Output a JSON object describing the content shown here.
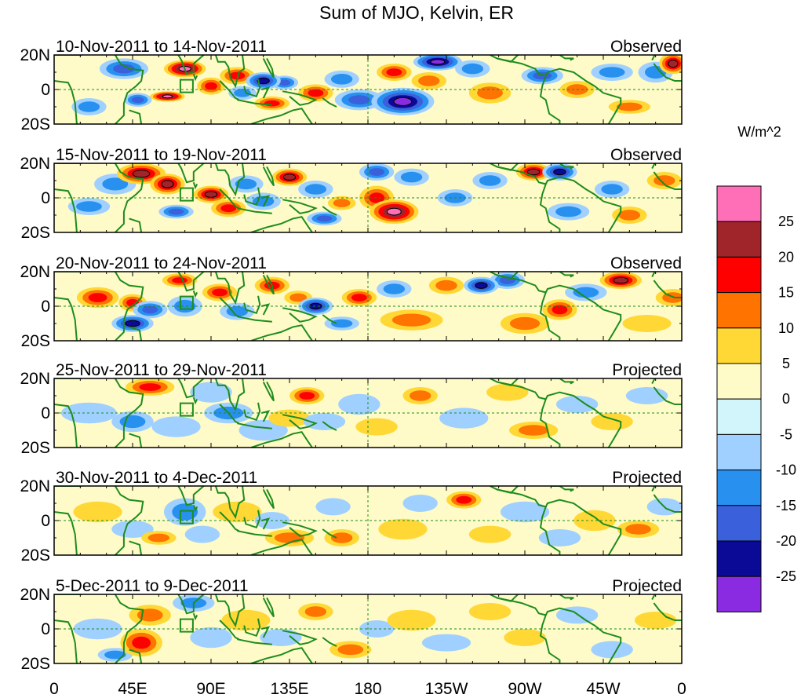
{
  "chart_data": {
    "type": "heatmap",
    "title": "Sum of MJO, Kelvin, ER",
    "colorbar": {
      "label": "W/m^2",
      "levels": [
        -25,
        -20,
        -15,
        -10,
        -5,
        0,
        5,
        10,
        15,
        20,
        25
      ],
      "level_labels": [
        "25",
        "20",
        "15",
        "10",
        "5",
        "0",
        "-5",
        "-10",
        "-15",
        "-20",
        "-25"
      ],
      "colors_top_to_bottom": [
        "#FF6FB8",
        "#A0252A",
        "#FF0000",
        "#FF7300",
        "#FFD836",
        "#FFFBC8",
        "#D2F5FB",
        "#A0D0FF",
        "#2891F0",
        "#3A60DC",
        "#0A0A96",
        "#8A2BE2"
      ]
    },
    "x_ticks": [
      "0",
      "45E",
      "90E",
      "135E",
      "180",
      "135W",
      "90W",
      "45W",
      "0"
    ],
    "x_tick_lon": [
      0,
      45,
      90,
      135,
      180,
      225,
      270,
      315,
      360
    ],
    "y_ticks": [
      "20N",
      "0",
      "20S"
    ],
    "y_tick_lat": [
      20,
      0,
      -20
    ],
    "lon_range": [
      0,
      360
    ],
    "lat_range": [
      -20,
      20
    ],
    "panels": [
      {
        "period": "10-Nov-2011 to 14-Nov-2011",
        "status": "Observed",
        "blobs": [
          [
            40,
            12,
            14,
            6,
            -3
          ],
          [
            75,
            12,
            12,
            5,
            5
          ],
          [
            65,
            -4,
            10,
            3,
            5
          ],
          [
            48,
            -6,
            8,
            4,
            -3
          ],
          [
            90,
            2,
            8,
            5,
            3
          ],
          [
            105,
            8,
            10,
            5,
            3
          ],
          [
            108,
            -2,
            8,
            4,
            -2
          ],
          [
            120,
            5,
            10,
            5,
            -4
          ],
          [
            132,
            4,
            8,
            4,
            -3
          ],
          [
            125,
            -8,
            10,
            4,
            3
          ],
          [
            150,
            -2,
            10,
            5,
            3
          ],
          [
            165,
            6,
            10,
            5,
            -2
          ],
          [
            175,
            -6,
            14,
            6,
            -3
          ],
          [
            200,
            -7,
            18,
            8,
            -5
          ],
          [
            195,
            10,
            10,
            5,
            3
          ],
          [
            215,
            5,
            10,
            5,
            2
          ],
          [
            220,
            16,
            14,
            5,
            -5
          ],
          [
            250,
            -2,
            12,
            6,
            2
          ],
          [
            240,
            12,
            10,
            5,
            -2
          ],
          [
            280,
            8,
            12,
            5,
            -3
          ],
          [
            300,
            0,
            10,
            5,
            2
          ],
          [
            320,
            10,
            12,
            5,
            -2
          ],
          [
            345,
            10,
            10,
            6,
            -2
          ],
          [
            355,
            15,
            8,
            6,
            4
          ],
          [
            20,
            -10,
            10,
            5,
            -2
          ],
          [
            330,
            -10,
            12,
            4,
            2
          ]
        ]
      },
      {
        "period": "15-Nov-2011 to 19-Nov-2011",
        "status": "Observed",
        "blobs": [
          [
            35,
            8,
            12,
            6,
            -2
          ],
          [
            50,
            14,
            14,
            6,
            4
          ],
          [
            65,
            8,
            10,
            6,
            4
          ],
          [
            70,
            -8,
            10,
            4,
            -3
          ],
          [
            90,
            2,
            10,
            5,
            4
          ],
          [
            100,
            -6,
            10,
            5,
            3
          ],
          [
            110,
            8,
            10,
            5,
            -2
          ],
          [
            120,
            -2,
            10,
            5,
            -2
          ],
          [
            135,
            12,
            10,
            5,
            4
          ],
          [
            150,
            5,
            10,
            5,
            -2
          ],
          [
            155,
            -12,
            10,
            4,
            -3
          ],
          [
            165,
            -3,
            8,
            4,
            2
          ],
          [
            185,
            0,
            10,
            7,
            3
          ],
          [
            195,
            -8,
            14,
            7,
            5
          ],
          [
            185,
            15,
            10,
            5,
            -3
          ],
          [
            205,
            12,
            10,
            5,
            -2
          ],
          [
            230,
            0,
            10,
            5,
            -2
          ],
          [
            250,
            10,
            10,
            5,
            -2
          ],
          [
            275,
            15,
            10,
            5,
            4
          ],
          [
            290,
            15,
            10,
            5,
            -4
          ],
          [
            295,
            -8,
            12,
            5,
            -2
          ],
          [
            320,
            5,
            10,
            5,
            -2
          ],
          [
            330,
            -10,
            10,
            5,
            2
          ],
          [
            20,
            -5,
            12,
            5,
            -2
          ],
          [
            350,
            10,
            10,
            5,
            2
          ]
        ]
      },
      {
        "period": "20-Nov-2011 to 24-Nov-2011",
        "status": "Observed",
        "blobs": [
          [
            25,
            5,
            12,
            6,
            3
          ],
          [
            45,
            2,
            8,
            5,
            3
          ],
          [
            55,
            -2,
            10,
            5,
            -3
          ],
          [
            45,
            -10,
            12,
            5,
            -4
          ],
          [
            75,
            0,
            10,
            6,
            -2
          ],
          [
            72,
            15,
            10,
            4,
            3
          ],
          [
            95,
            8,
            10,
            5,
            3
          ],
          [
            105,
            -3,
            10,
            5,
            -2
          ],
          [
            125,
            12,
            10,
            5,
            3
          ],
          [
            140,
            5,
            8,
            4,
            2
          ],
          [
            150,
            0,
            10,
            5,
            -4
          ],
          [
            165,
            -10,
            10,
            4,
            -2
          ],
          [
            175,
            5,
            10,
            5,
            3
          ],
          [
            195,
            10,
            10,
            5,
            -2
          ],
          [
            205,
            -8,
            18,
            6,
            2
          ],
          [
            225,
            12,
            10,
            5,
            2
          ],
          [
            245,
            12,
            10,
            5,
            -4
          ],
          [
            260,
            15,
            10,
            5,
            -3
          ],
          [
            270,
            -10,
            14,
            6,
            2
          ],
          [
            290,
            -2,
            10,
            6,
            3
          ],
          [
            305,
            8,
            12,
            5,
            -2
          ],
          [
            325,
            15,
            12,
            5,
            4
          ],
          [
            340,
            -10,
            14,
            5,
            1
          ],
          [
            355,
            5,
            10,
            5,
            2
          ]
        ]
      },
      {
        "period": "25-Nov-2011 to 29-Nov-2011",
        "status": "Projected",
        "blobs": [
          [
            20,
            0,
            16,
            6,
            -1
          ],
          [
            45,
            -5,
            12,
            6,
            -2
          ],
          [
            55,
            15,
            14,
            5,
            3
          ],
          [
            70,
            -8,
            14,
            6,
            -1
          ],
          [
            90,
            12,
            12,
            6,
            -1
          ],
          [
            100,
            0,
            14,
            6,
            -2
          ],
          [
            120,
            -10,
            14,
            6,
            -1
          ],
          [
            145,
            10,
            10,
            5,
            3
          ],
          [
            135,
            -3,
            12,
            5,
            1
          ],
          [
            155,
            -5,
            12,
            5,
            -1
          ],
          [
            175,
            5,
            12,
            6,
            -1
          ],
          [
            185,
            -8,
            12,
            5,
            1
          ],
          [
            210,
            10,
            10,
            5,
            2
          ],
          [
            235,
            -3,
            14,
            6,
            -1
          ],
          [
            260,
            12,
            12,
            5,
            1
          ],
          [
            275,
            -10,
            14,
            5,
            2
          ],
          [
            300,
            5,
            12,
            5,
            -1
          ],
          [
            320,
            -5,
            12,
            5,
            1
          ],
          [
            340,
            10,
            12,
            5,
            -1
          ]
        ]
      },
      {
        "period": "30-Nov-2011 to 4-Dec-2011",
        "status": "Projected",
        "blobs": [
          [
            25,
            5,
            14,
            6,
            1
          ],
          [
            45,
            -5,
            12,
            5,
            -1
          ],
          [
            60,
            -10,
            10,
            4,
            2
          ],
          [
            75,
            5,
            12,
            8,
            -2
          ],
          [
            85,
            -8,
            10,
            5,
            -1
          ],
          [
            105,
            5,
            14,
            6,
            1
          ],
          [
            125,
            0,
            10,
            5,
            -1
          ],
          [
            135,
            -10,
            14,
            5,
            2
          ],
          [
            160,
            8,
            10,
            5,
            -1
          ],
          [
            165,
            -10,
            10,
            5,
            2
          ],
          [
            200,
            -5,
            14,
            6,
            1
          ],
          [
            210,
            10,
            10,
            5,
            -1
          ],
          [
            235,
            12,
            10,
            5,
            3
          ],
          [
            250,
            -8,
            12,
            5,
            1
          ],
          [
            270,
            5,
            14,
            6,
            -1
          ],
          [
            290,
            -10,
            12,
            5,
            -1
          ],
          [
            310,
            0,
            12,
            6,
            1
          ],
          [
            335,
            -5,
            12,
            5,
            2
          ],
          [
            350,
            8,
            10,
            5,
            -1
          ]
        ]
      },
      {
        "period": "5-Dec-2011 to 9-Dec-2011",
        "status": "Projected",
        "blobs": [
          [
            25,
            0,
            14,
            6,
            -1
          ],
          [
            50,
            -8,
            12,
            8,
            3
          ],
          [
            55,
            8,
            12,
            6,
            2
          ],
          [
            35,
            -15,
            10,
            4,
            -2
          ],
          [
            80,
            15,
            12,
            5,
            -2
          ],
          [
            90,
            -5,
            12,
            6,
            -1
          ],
          [
            110,
            5,
            14,
            6,
            1
          ],
          [
            130,
            -5,
            12,
            5,
            -1
          ],
          [
            150,
            10,
            10,
            5,
            2
          ],
          [
            170,
            -12,
            12,
            5,
            2
          ],
          [
            185,
            0,
            10,
            5,
            -1
          ],
          [
            205,
            5,
            14,
            6,
            1
          ],
          [
            225,
            -8,
            14,
            5,
            -1
          ],
          [
            250,
            10,
            12,
            5,
            1
          ],
          [
            270,
            -5,
            12,
            5,
            1
          ],
          [
            300,
            8,
            12,
            5,
            -1
          ],
          [
            320,
            -12,
            12,
            5,
            -1
          ],
          [
            345,
            5,
            12,
            5,
            1
          ]
        ]
      }
    ]
  }
}
